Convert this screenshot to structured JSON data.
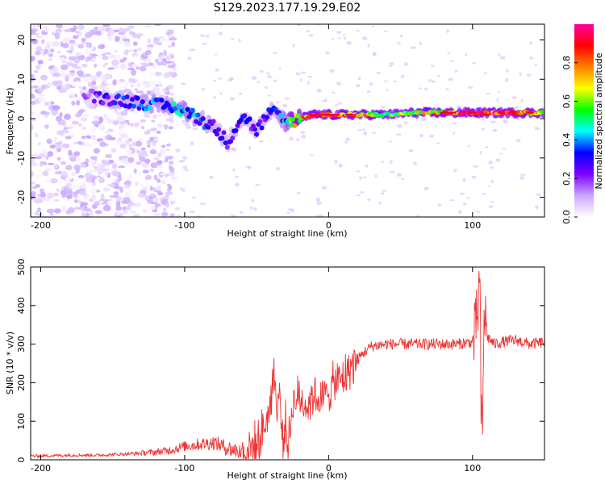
{
  "figure_title": "S129.2023.177.19.29.E02",
  "chart_data": [
    {
      "type": "heatmap",
      "title": "",
      "xlabel": "Height of straight line (km)",
      "ylabel": "Frequency (Hz)",
      "xlim": [
        -207,
        150
      ],
      "ylim": [
        -25,
        24
      ],
      "xticks": [
        -200,
        -100,
        0,
        100
      ],
      "yticks": [
        -20,
        -10,
        0,
        10,
        20
      ],
      "colorbar": {
        "label": "Normalized spectral amplitude",
        "range": [
          0,
          1
        ],
        "ticks": [
          0.0,
          0.2,
          0.4,
          0.6,
          0.8
        ],
        "colors": [
          "#ffffff",
          "#c9a6ff",
          "#8000ff",
          "#0000ff",
          "#00ffff",
          "#00ff00",
          "#ffff00",
          "#ff8000",
          "#ff0000",
          "#ff00a0"
        ]
      },
      "ridge": {
        "x": [
          -170,
          -150,
          -130,
          -110,
          -100,
          -90,
          -80,
          -70,
          -60,
          -50,
          -40,
          -30,
          -20,
          -10,
          0,
          20,
          40,
          60,
          80,
          100,
          120,
          150
        ],
        "frequency": [
          6,
          5,
          4,
          3,
          2,
          0,
          -2,
          -6,
          1,
          -3,
          2,
          -1,
          0,
          1,
          1,
          1,
          1,
          1.5,
          1.5,
          1.5,
          1.5,
          1.5
        ],
        "amplitude": [
          0.15,
          0.3,
          0.35,
          0.4,
          0.45,
          0.35,
          0.3,
          0.25,
          0.3,
          0.25,
          0.3,
          0.45,
          0.75,
          0.85,
          0.85,
          0.8,
          0.6,
          0.6,
          0.8,
          0.9,
          0.9,
          0.7
        ]
      }
    },
    {
      "type": "line",
      "title": "",
      "xlabel": "Height of straight line (km)",
      "ylabel": "SNR (10 * v/v)",
      "xlim": [
        -207,
        150
      ],
      "ylim": [
        0,
        500
      ],
      "xticks": [
        -200,
        -100,
        0,
        100
      ],
      "yticks": [
        0,
        100,
        200,
        300,
        400,
        500
      ],
      "line_color": "#ee3333",
      "series": [
        {
          "x": [
            -207,
            -200,
            -180,
            -160,
            -140,
            -120,
            -110,
            -100,
            -90,
            -80,
            -70,
            -60,
            -50,
            -45,
            -40,
            -38,
            -36,
            -34,
            -32,
            -30,
            -28,
            -25,
            -20,
            -15,
            -10,
            -5,
            0,
            5,
            10,
            15,
            20,
            25,
            30,
            40,
            60,
            80,
            90,
            100,
            102,
            104,
            105,
            106,
            107,
            108,
            110,
            115,
            120,
            130,
            140,
            150
          ],
          "y": [
            10,
            10,
            12,
            12,
            15,
            20,
            25,
            35,
            40,
            45,
            30,
            20,
            40,
            80,
            150,
            250,
            120,
            180,
            40,
            100,
            30,
            150,
            160,
            140,
            170,
            150,
            180,
            200,
            210,
            240,
            260,
            280,
            295,
            300,
            300,
            300,
            300,
            305,
            330,
            400,
            490,
            100,
            60,
            400,
            320,
            300,
            305,
            310,
            300,
            305
          ]
        }
      ]
    }
  ]
}
